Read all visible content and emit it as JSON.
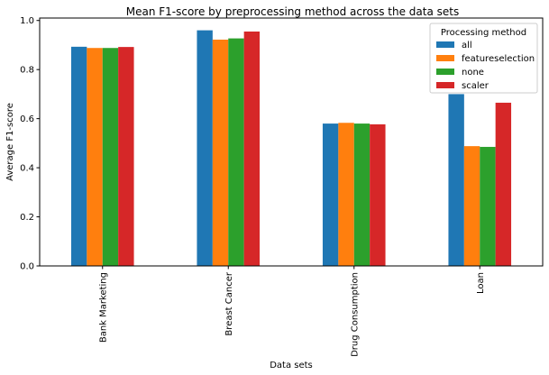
{
  "chart_data": {
    "type": "bar",
    "title": "Mean F1-score by preprocessing method across the data sets",
    "xlabel": "Data sets",
    "ylabel": "Average F1-score",
    "categories": [
      "Bank Marketing",
      "Breast Cancer",
      "Drug Consumption",
      "Loan"
    ],
    "ylim": [
      0,
      1.01
    ],
    "yticks": [
      0.0,
      0.2,
      0.4,
      0.6,
      0.8,
      1.0
    ],
    "ytick_labels": [
      "0.0",
      "0.2",
      "0.4",
      "0.6",
      "0.8",
      "1.0"
    ],
    "grid": false,
    "legend": {
      "title": "Processing method",
      "placement": "top-right"
    },
    "series": [
      {
        "name": "all",
        "color": "#1f77b4",
        "values": [
          0.893,
          0.96,
          0.58,
          0.7
        ]
      },
      {
        "name": "featureselection",
        "color": "#ff7f0e",
        "values": [
          0.888,
          0.922,
          0.583,
          0.488
        ]
      },
      {
        "name": "none",
        "color": "#2ca02c",
        "values": [
          0.888,
          0.927,
          0.58,
          0.485
        ]
      },
      {
        "name": "scaler",
        "color": "#d62728",
        "values": [
          0.892,
          0.955,
          0.577,
          0.665
        ]
      }
    ]
  }
}
